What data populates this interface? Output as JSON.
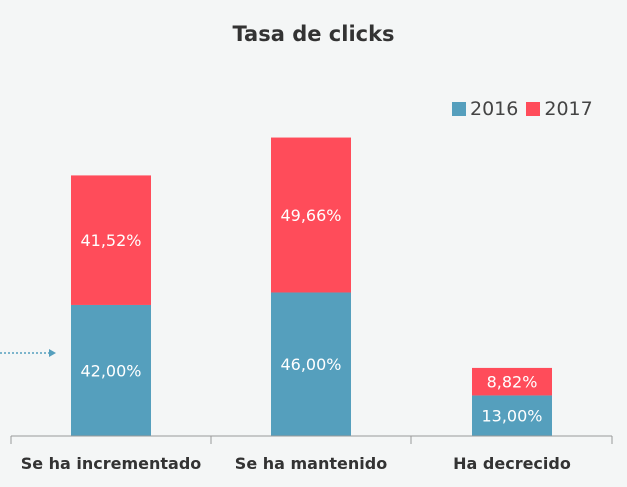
{
  "chart_data": {
    "type": "bar",
    "stacked": true,
    "title": "Tasa de clicks",
    "categories": [
      "Se ha incrementado",
      "Se ha mantenido",
      "Ha decrecido"
    ],
    "series": [
      {
        "name": "2016",
        "color": "#559fbd",
        "values": [
          42.0,
          46.0,
          13.0
        ],
        "labels": [
          "42,00%",
          "46,00%",
          "13,00%"
        ]
      },
      {
        "name": "2017",
        "color": "#ff4c5a",
        "values": [
          41.52,
          49.66,
          8.82
        ],
        "labels": [
          "41,52%",
          "49,66%",
          "8,82%"
        ]
      }
    ],
    "legend_position": "top-right",
    "grid": false
  }
}
